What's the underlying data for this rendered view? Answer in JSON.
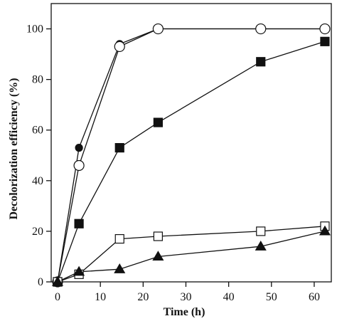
{
  "chart_data": {
    "type": "line",
    "title": "",
    "xlabel": "Time (h)",
    "ylabel": "Decolorization efficiency (%)",
    "xlim": [
      -1.5,
      64
    ],
    "ylim": [
      0,
      110
    ],
    "xticks": [
      0,
      10,
      20,
      30,
      40,
      50,
      60
    ],
    "yticks": [
      0,
      20,
      40,
      60,
      80,
      100
    ],
    "grid": false,
    "legend": "none",
    "series": [
      {
        "marker": "filled-circle",
        "x": [
          0,
          5,
          14.5,
          23.5,
          47.5,
          62.5
        ],
        "y": [
          0,
          53,
          94,
          100,
          100,
          100
        ]
      },
      {
        "marker": "open-circle",
        "x": [
          0,
          5,
          14.5,
          23.5,
          47.5,
          62.5
        ],
        "y": [
          0,
          46,
          93,
          100,
          100,
          100
        ]
      },
      {
        "marker": "filled-square",
        "x": [
          0,
          5,
          14.5,
          23.5,
          47.5,
          62.5
        ],
        "y": [
          0,
          23,
          53,
          63,
          87,
          95
        ]
      },
      {
        "marker": "open-square",
        "x": [
          0,
          5,
          14.5,
          23.5,
          47.5,
          62.5
        ],
        "y": [
          0,
          3,
          17,
          18,
          20,
          22
        ]
      },
      {
        "marker": "filled-triangle",
        "x": [
          0,
          5,
          14.5,
          23.5,
          47.5,
          62.5
        ],
        "y": [
          0,
          4,
          5,
          10,
          14,
          20
        ]
      }
    ],
    "colors": {
      "line": "#111111",
      "background": "#ffffff"
    }
  }
}
